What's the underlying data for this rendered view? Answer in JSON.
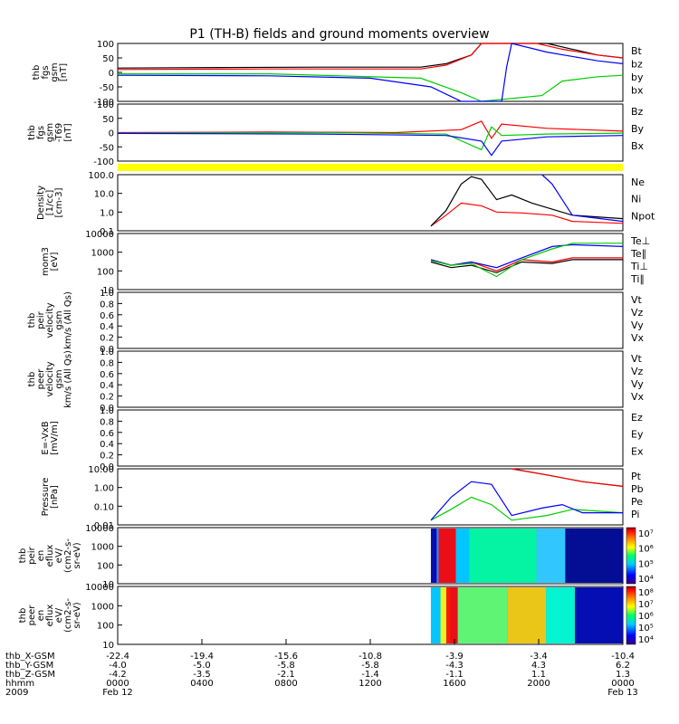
{
  "title": "P1 (TH-B) fields and ground moments overview",
  "colors": {
    "black": "#000000",
    "red": "#ff0000",
    "green": "#00cc00",
    "blue": "#0000ff",
    "yellow": "#ffff00"
  },
  "chart_data": [
    {
      "type": "line",
      "panel": "fgs",
      "ylabel": [
        "thb",
        "fgs",
        "gsm",
        "[nT]"
      ],
      "yticks": [
        "100",
        "50",
        "0",
        "-50",
        "-100"
      ],
      "ylim": [
        -100,
        100
      ],
      "series": [
        {
          "name": "Bt",
          "color": "black",
          "values": [
            [
              0,
              15
            ],
            [
              0.2,
              17
            ],
            [
              0.4,
              18
            ],
            [
              0.6,
              18
            ],
            [
              0.65,
              30
            ],
            [
              0.7,
              60
            ],
            [
              0.72,
              100
            ],
            [
              0.85,
              100
            ],
            [
              0.9,
              80
            ],
            [
              0.95,
              60
            ],
            [
              1,
              50
            ]
          ]
        },
        {
          "name": "bz",
          "color": "red",
          "values": [
            [
              0,
              10
            ],
            [
              0.3,
              12
            ],
            [
              0.6,
              12
            ],
            [
              0.65,
              25
            ],
            [
              0.7,
              60
            ],
            [
              0.72,
              100
            ],
            [
              0.83,
              100
            ],
            [
              0.88,
              80
            ],
            [
              0.95,
              60
            ],
            [
              1,
              50
            ]
          ]
        },
        {
          "name": "by",
          "color": "green",
          "values": [
            [
              0,
              -5
            ],
            [
              0.3,
              -5
            ],
            [
              0.6,
              -20
            ],
            [
              0.68,
              -70
            ],
            [
              0.72,
              -100
            ],
            [
              0.84,
              -80
            ],
            [
              0.88,
              -30
            ],
            [
              0.95,
              -15
            ],
            [
              1,
              -10
            ]
          ]
        },
        {
          "name": "bx",
          "color": "blue",
          "values": [
            [
              0,
              -10
            ],
            [
              0.3,
              -12
            ],
            [
              0.5,
              -20
            ],
            [
              0.62,
              -50
            ],
            [
              0.68,
              -100
            ],
            [
              0.76,
              -100
            ],
            [
              0.77,
              20
            ],
            [
              0.78,
              100
            ],
            [
              0.85,
              70
            ],
            [
              0.95,
              40
            ],
            [
              1,
              30
            ]
          ]
        }
      ]
    },
    {
      "type": "line",
      "panel": "fgs-gsm",
      "ylabel": [
        "thb",
        "fgs",
        "gsm",
        "-T69",
        "[nT]"
      ],
      "yticks": [
        "100",
        "50",
        "0",
        "-50",
        "-100"
      ],
      "ylim": [
        -100,
        100
      ],
      "series": [
        {
          "name": "Bz",
          "color": "red",
          "values": [
            [
              0,
              0
            ],
            [
              0.3,
              2
            ],
            [
              0.55,
              0
            ],
            [
              0.68,
              10
            ],
            [
              0.72,
              40
            ],
            [
              0.74,
              -20
            ],
            [
              0.76,
              30
            ],
            [
              0.85,
              15
            ],
            [
              1,
              5
            ]
          ]
        },
        {
          "name": "By",
          "color": "green",
          "values": [
            [
              0,
              -2
            ],
            [
              0.4,
              0
            ],
            [
              0.65,
              -5
            ],
            [
              0.72,
              -60
            ],
            [
              0.74,
              20
            ],
            [
              0.76,
              -10
            ],
            [
              0.85,
              -5
            ],
            [
              1,
              -2
            ]
          ]
        },
        {
          "name": "Bx",
          "color": "blue",
          "values": [
            [
              0,
              -3
            ],
            [
              0.4,
              -5
            ],
            [
              0.65,
              -10
            ],
            [
              0.72,
              -30
            ],
            [
              0.74,
              -80
            ],
            [
              0.76,
              -30
            ],
            [
              0.85,
              -15
            ],
            [
              1,
              -10
            ]
          ]
        }
      ]
    },
    {
      "type": "line",
      "panel": "density",
      "ylabel": [
        "Density",
        "[1/cc]",
        "[cm-3]"
      ],
      "yticks": [
        "100.0",
        "10.0",
        "1.0",
        "0.1"
      ],
      "ylim": [
        0.05,
        200
      ],
      "scale": "log",
      "series": [
        {
          "name": "Ne",
          "color": "red",
          "values": [
            [
              0.62,
              0.1
            ],
            [
              0.65,
              0.5
            ],
            [
              0.68,
              3
            ],
            [
              0.72,
              2
            ],
            [
              0.75,
              0.8
            ],
            [
              0.8,
              0.7
            ],
            [
              0.86,
              0.5
            ],
            [
              0.9,
              0.2
            ],
            [
              1,
              0.15
            ]
          ]
        },
        {
          "name": "Ni",
          "color": "black",
          "values": [
            [
              0.62,
              0.1
            ],
            [
              0.65,
              1
            ],
            [
              0.68,
              50
            ],
            [
              0.7,
              150
            ],
            [
              0.72,
              100
            ],
            [
              0.75,
              5
            ],
            [
              0.78,
              10
            ],
            [
              0.82,
              3
            ],
            [
              0.9,
              0.5
            ],
            [
              1,
              0.3
            ]
          ]
        },
        {
          "name": "Npot",
          "color": "blue",
          "values": [
            [
              0.84,
              200
            ],
            [
              0.86,
              50
            ],
            [
              0.88,
              5
            ],
            [
              0.9,
              0.5
            ],
            [
              1,
              0.2
            ]
          ]
        }
      ]
    },
    {
      "type": "line",
      "panel": "temperature",
      "ylabel": [
        "mom3",
        "[eV]"
      ],
      "yticks": [
        "10000",
        "1000",
        "100",
        "10"
      ],
      "ylim": [
        10,
        10000
      ],
      "scale": "log",
      "series": [
        {
          "name": "Te⊥",
          "color": "red",
          "values": [
            [
              0.62,
              400
            ],
            [
              0.66,
              200
            ],
            [
              0.7,
              300
            ],
            [
              0.75,
              100
            ],
            [
              0.8,
              400
            ],
            [
              0.86,
              300
            ],
            [
              0.9,
              500
            ],
            [
              1,
              500
            ]
          ]
        },
        {
          "name": "Te∥",
          "color": "black",
          "values": [
            [
              0.62,
              300
            ],
            [
              0.66,
              150
            ],
            [
              0.7,
              200
            ],
            [
              0.75,
              80
            ],
            [
              0.8,
              300
            ],
            [
              0.86,
              250
            ],
            [
              0.9,
              400
            ],
            [
              1,
              400
            ]
          ]
        },
        {
          "name": "Ti⊥",
          "color": "blue",
          "values": [
            [
              0.62,
              400
            ],
            [
              0.66,
              200
            ],
            [
              0.7,
              300
            ],
            [
              0.75,
              150
            ],
            [
              0.8,
              500
            ],
            [
              0.86,
              2000
            ],
            [
              0.9,
              2500
            ],
            [
              1,
              2000
            ]
          ]
        },
        {
          "name": "Ti∥",
          "color": "green",
          "values": [
            [
              0.62,
              350
            ],
            [
              0.66,
              200
            ],
            [
              0.7,
              250
            ],
            [
              0.75,
              50
            ],
            [
              0.8,
              400
            ],
            [
              0.86,
              1500
            ],
            [
              0.9,
              3000
            ],
            [
              1,
              3000
            ]
          ]
        }
      ]
    },
    {
      "type": "line",
      "panel": "peir-velocity",
      "ylabel": [
        "thb",
        "peir",
        "velocity",
        "gsm",
        "km/s (All Qs)"
      ],
      "yticks": [
        "1.0",
        "0.8",
        "0.6",
        "0.4",
        "0.2",
        "0.0"
      ],
      "ylim": [
        0,
        1
      ],
      "series": [
        {
          "name": "Vt",
          "color": "black",
          "values": []
        },
        {
          "name": "Vz",
          "color": "red",
          "values": []
        },
        {
          "name": "Vy",
          "color": "green",
          "values": []
        },
        {
          "name": "Vx",
          "color": "blue",
          "values": []
        }
      ]
    },
    {
      "type": "line",
      "panel": "peer-velocity",
      "ylabel": [
        "thb",
        "peer",
        "velocity",
        "gsm",
        "km/s (All Qs)"
      ],
      "yticks": [
        "1.0",
        "0.8",
        "0.6",
        "0.4",
        "0.2",
        "0.0"
      ],
      "ylim": [
        0,
        1
      ],
      "series": [
        {
          "name": "Vt",
          "color": "black",
          "values": []
        },
        {
          "name": "Vz",
          "color": "red",
          "values": []
        },
        {
          "name": "Vy",
          "color": "green",
          "values": []
        },
        {
          "name": "Vx",
          "color": "blue",
          "values": []
        }
      ]
    },
    {
      "type": "line",
      "panel": "efield",
      "ylabel": [
        "E=-VxB",
        "[mV/m]"
      ],
      "yticks": [
        "1.0",
        "0.8",
        "0.6",
        "0.4",
        "0.2",
        "0.0"
      ],
      "ylim": [
        0,
        1
      ],
      "series": [
        {
          "name": "Ez",
          "color": "red",
          "values": []
        },
        {
          "name": "Ey",
          "color": "green",
          "values": []
        },
        {
          "name": "Ex",
          "color": "blue",
          "values": []
        }
      ]
    },
    {
      "type": "line",
      "panel": "pressure",
      "ylabel": [
        "Pressure",
        "[nPa]"
      ],
      "yticks": [
        "10.00",
        "1.00",
        "0.10",
        "0.01"
      ],
      "ylim": [
        0.005,
        20
      ],
      "scale": "log",
      "series": [
        {
          "name": "Pt",
          "color": "black",
          "values": [
            [
              0.78,
              20
            ],
            [
              0.85,
              8
            ],
            [
              0.92,
              3
            ],
            [
              1,
              1.5
            ]
          ]
        },
        {
          "name": "Pb",
          "color": "red",
          "values": [
            [
              0.78,
              20
            ],
            [
              0.85,
              8
            ],
            [
              0.92,
              3
            ],
            [
              1,
              1.5
            ]
          ]
        },
        {
          "name": "Pe",
          "color": "green",
          "values": [
            [
              0.62,
              0.01
            ],
            [
              0.66,
              0.05
            ],
            [
              0.7,
              0.3
            ],
            [
              0.74,
              0.1
            ],
            [
              0.78,
              0.01
            ],
            [
              0.85,
              0.02
            ],
            [
              0.9,
              0.05
            ],
            [
              1,
              0.03
            ]
          ]
        },
        {
          "name": "Pi",
          "color": "blue",
          "values": [
            [
              0.62,
              0.01
            ],
            [
              0.66,
              0.3
            ],
            [
              0.7,
              3
            ],
            [
              0.74,
              2
            ],
            [
              0.78,
              0.02
            ],
            [
              0.84,
              0.06
            ],
            [
              0.88,
              0.1
            ],
            [
              0.92,
              0.03
            ],
            [
              1,
              0.03
            ]
          ]
        }
      ]
    },
    {
      "type": "heatmap",
      "panel": "peir-en-eflux",
      "ylabel": [
        "thb",
        "peir",
        "en",
        "eflux",
        "eV/",
        "(cm2-s-",
        "sr-eV)"
      ],
      "yticks": [
        "10000",
        "1000",
        "100",
        "10"
      ],
      "colorbar_ticks": [
        "10⁷",
        "10⁶",
        "10⁵",
        "10⁴"
      ]
    },
    {
      "type": "heatmap",
      "panel": "peer-en-eflux",
      "ylabel": [
        "thb",
        "peer",
        "en",
        "eflux",
        "eV/",
        "(cm2-s-",
        "sr-eV)"
      ],
      "yticks": [
        "10000",
        "1000",
        "100",
        "10"
      ],
      "colorbar_ticks": [
        "10⁸",
        "10⁷",
        "10⁶",
        "10⁵",
        "10⁴"
      ]
    }
  ],
  "x_axis": {
    "rows": [
      {
        "label": "thb_X-GSM",
        "values": [
          "-22.4",
          "-19.4",
          "-15.6",
          "-10.8",
          "-3.9",
          "-3.4",
          "-10.4"
        ]
      },
      {
        "label": "thb_Y-GSM",
        "values": [
          "-4.0",
          "-5.0",
          "-5.8",
          "-5.8",
          "-4.3",
          "4.3",
          "6.2"
        ]
      },
      {
        "label": "thb_Z-GSM",
        "values": [
          "-4.2",
          "-3.5",
          "-2.1",
          "-1.4",
          "-1.1",
          "1.1",
          "1.3"
        ]
      },
      {
        "label": "hhmm",
        "values": [
          "0000",
          "0400",
          "0800",
          "1200",
          "1600",
          "2000",
          "0000"
        ]
      },
      {
        "label": "2009",
        "values": [
          "Feb 12",
          "",
          "",
          "",
          "",
          "",
          "Feb 13"
        ]
      }
    ]
  }
}
